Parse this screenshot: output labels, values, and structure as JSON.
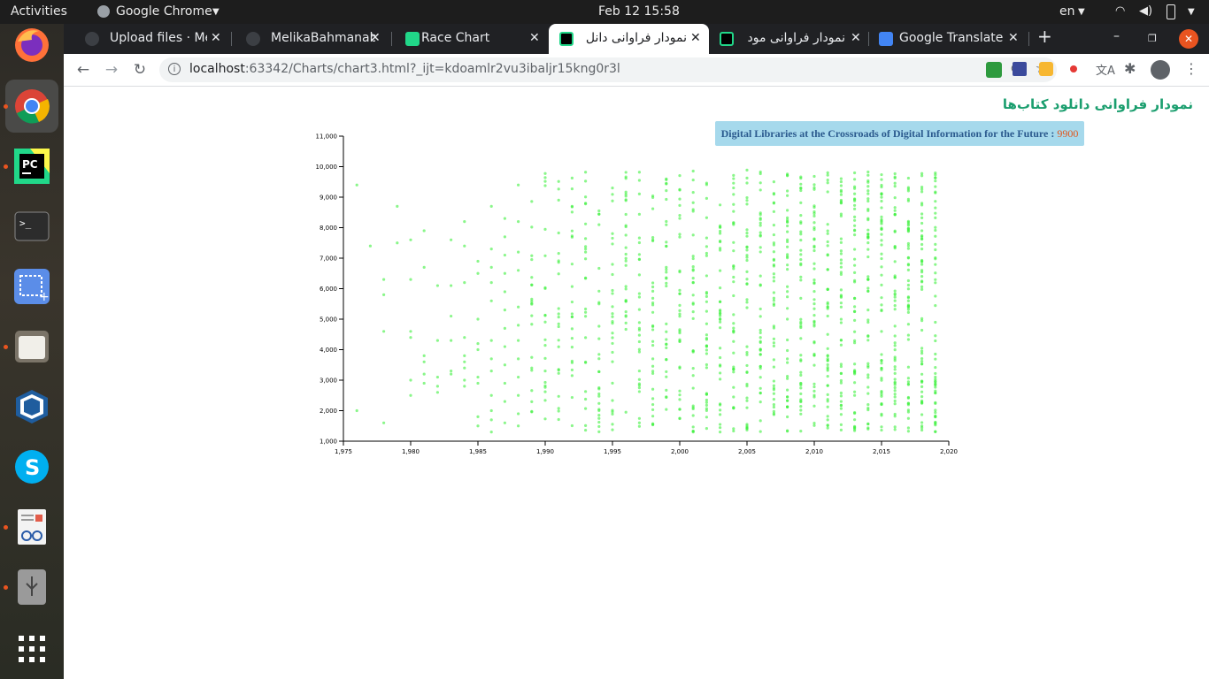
{
  "system": {
    "activities": "Activities",
    "app_name": "Google Chrome",
    "clock": "Feb 12  15:58",
    "lang": "en"
  },
  "tabs": [
    {
      "title": "Upload files · Mel",
      "icon": "github-icon",
      "active": false
    },
    {
      "title": "MelikaBahmanab",
      "icon": "github-icon",
      "active": false
    },
    {
      "title": "Race Chart",
      "icon": "pycharm-icon",
      "active": false
    },
    {
      "title": "نمودار فراوانی دانل",
      "icon": "pycharm-icon",
      "active": true
    },
    {
      "title": "نمودار فراوانی مود",
      "icon": "pycharm-icon",
      "active": false
    },
    {
      "title": "Google Translate",
      "icon": "google-translate-icon",
      "active": false
    }
  ],
  "address": {
    "host": "localhost",
    "path": ":63342/Charts/chart3.html?_ijt=kdoamlr2vu3ibaljr15kng0r3l"
  },
  "page": {
    "title": "نمودار فراوانی دانلود کتاب‌ها",
    "tooltip": {
      "label": "Digital Libraries at the Crossroads of Digital Information for the Future : ",
      "value": "9900"
    }
  },
  "colors": {
    "point": "#3cf03c",
    "title": "#1a9e6e",
    "tooltip_bg": "#a6d9ec"
  },
  "chart_data": {
    "type": "scatter",
    "title": "",
    "xlabel": "",
    "ylabel": "",
    "xlim": [
      1975,
      2020
    ],
    "ylim": [
      1000,
      11000
    ],
    "x_ticks": [
      "1,975",
      "1,980",
      "1,985",
      "1,990",
      "1,995",
      "2,000",
      "2,005",
      "2,010",
      "2,015",
      "2,020"
    ],
    "y_ticks": [
      "11,000",
      "10,000",
      "9,000",
      "8,000",
      "7,000",
      "6,000",
      "5,000",
      "4,000",
      "3,000",
      "2,000",
      "1,000"
    ],
    "grid": false,
    "points": [
      [
        1976,
        9400
      ],
      [
        1976,
        2000
      ],
      [
        1977,
        7400
      ],
      [
        1978,
        6300
      ],
      [
        1978,
        5800
      ],
      [
        1978,
        4600
      ],
      [
        1978,
        1600
      ],
      [
        1979,
        8700
      ],
      [
        1979,
        7500
      ],
      [
        1980,
        7600
      ],
      [
        1980,
        6300
      ],
      [
        1980,
        4600
      ],
      [
        1980,
        4400
      ],
      [
        1980,
        3000
      ],
      [
        1980,
        2500
      ],
      [
        1981,
        7900
      ],
      [
        1981,
        6700
      ],
      [
        1981,
        3800
      ],
      [
        1981,
        3600
      ],
      [
        1981,
        3200
      ],
      [
        1981,
        2900
      ],
      [
        1982,
        6100
      ],
      [
        1982,
        4300
      ],
      [
        1982,
        3100
      ],
      [
        1982,
        2800
      ],
      [
        1982,
        2600
      ],
      [
        1983,
        7600
      ],
      [
        1983,
        6100
      ],
      [
        1983,
        5100
      ],
      [
        1983,
        4300
      ],
      [
        1983,
        3300
      ],
      [
        1983,
        3200
      ],
      [
        1984,
        8200
      ],
      [
        1984,
        7400
      ],
      [
        1984,
        6200
      ],
      [
        1984,
        4400
      ],
      [
        1984,
        3800
      ],
      [
        1984,
        3600
      ],
      [
        1984,
        3400
      ],
      [
        1984,
        3000
      ],
      [
        1984,
        2800
      ],
      [
        1985,
        6900
      ],
      [
        1985,
        6500
      ],
      [
        1985,
        5000
      ],
      [
        1985,
        4200
      ],
      [
        1985,
        4000
      ],
      [
        1985,
        3100
      ],
      [
        1985,
        2900
      ],
      [
        1985,
        1800
      ],
      [
        1985,
        1500
      ],
      [
        1986,
        8700
      ],
      [
        1986,
        7300
      ],
      [
        1986,
        6700
      ],
      [
        1986,
        6200
      ],
      [
        1986,
        5600
      ],
      [
        1986,
        4300
      ],
      [
        1986,
        3700
      ],
      [
        1986,
        3300
      ],
      [
        1986,
        2500
      ],
      [
        1986,
        2000
      ],
      [
        1986,
        1700
      ],
      [
        1986,
        1300
      ],
      [
        1987,
        8300
      ],
      [
        1987,
        7700
      ],
      [
        1987,
        7100
      ],
      [
        1987,
        6500
      ],
      [
        1987,
        5900
      ],
      [
        1987,
        5300
      ],
      [
        1987,
        4700
      ],
      [
        1987,
        4100
      ],
      [
        1987,
        3500
      ],
      [
        1987,
        2900
      ],
      [
        1987,
        2300
      ],
      [
        1987,
        1600
      ],
      [
        1988,
        9400
      ],
      [
        1988,
        8200
      ],
      [
        1988,
        7200
      ],
      [
        1988,
        6600
      ],
      [
        1988,
        5400
      ],
      [
        1988,
        4800
      ],
      [
        1988,
        4300
      ],
      [
        1988,
        3700
      ],
      [
        1988,
        3100
      ],
      [
        1988,
        2500
      ],
      [
        1988,
        1900
      ],
      [
        1988,
        1500
      ]
    ]
  },
  "launcher_icons": [
    "firefox-icon",
    "chrome-icon",
    "pycharm-icon",
    "terminal-icon",
    "screenshot-icon",
    "files-icon",
    "virtualbox-icon",
    "skype-icon",
    "reader-icon",
    "usb-icon",
    "apps-grid-icon"
  ]
}
